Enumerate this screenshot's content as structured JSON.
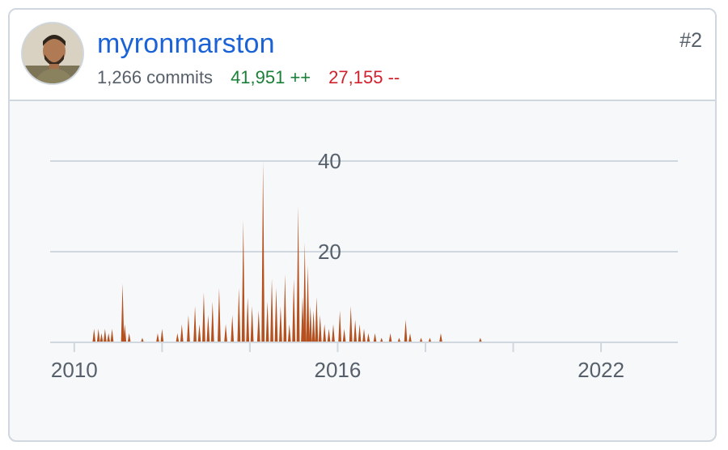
{
  "contributor": {
    "username": "myronmarston",
    "commits_text": "1,266 commits",
    "additions_text": "41,951 ++",
    "deletions_text": "27,155 --",
    "rank": "#2",
    "avatar_icon": "user-avatar-photo"
  },
  "colors": {
    "accent_link": "#1a62d6",
    "additions": "#1a7f37",
    "deletions": "#cf222e",
    "area_fill": "#b5501f"
  },
  "chart_data": {
    "type": "area",
    "title": "",
    "xlabel": "",
    "ylabel": "",
    "x_tick_labels": [
      "2010",
      "2016",
      "2022"
    ],
    "x_ticks": [
      2010,
      2012,
      2014,
      2016,
      2018,
      2020,
      2022
    ],
    "y_ticks": [
      20,
      40
    ],
    "xlim": [
      2009.45,
      2023.75
    ],
    "ylim": [
      0,
      40
    ],
    "grid": true,
    "series": [
      {
        "x": [
          2010.45,
          2010.55,
          2010.62,
          2010.7,
          2010.78,
          2010.86,
          2011.1,
          2011.15,
          2011.25,
          2011.55,
          2011.9,
          2012.0,
          2012.35,
          2012.45,
          2012.6,
          2012.75,
          2012.85,
          2012.95,
          2013.05,
          2013.15,
          2013.3,
          2013.45,
          2013.6,
          2013.75,
          2013.85,
          2013.95,
          2014.05,
          2014.2,
          2014.3,
          2014.4,
          2014.5,
          2014.6,
          2014.7,
          2014.8,
          2014.9,
          2015.0,
          2015.1,
          2015.2,
          2015.25,
          2015.32,
          2015.38,
          2015.45,
          2015.52,
          2015.6,
          2015.7,
          2015.8,
          2015.9,
          2016.05,
          2016.15,
          2016.3,
          2016.4,
          2016.5,
          2016.6,
          2016.7,
          2016.85,
          2017.0,
          2017.2,
          2017.4,
          2017.55,
          2017.65,
          2017.9,
          2018.1,
          2018.35,
          2019.25
        ],
        "y": [
          3,
          3,
          2,
          3,
          2,
          3,
          13,
          4,
          2,
          1,
          2,
          3,
          2,
          4,
          6,
          8,
          4,
          11,
          6,
          9,
          12,
          4,
          6,
          12,
          27,
          10,
          8,
          7,
          40,
          9,
          14,
          12,
          8,
          15,
          4,
          14,
          30,
          10,
          22,
          17,
          8,
          7,
          10,
          6,
          4,
          3,
          4,
          7,
          3,
          8,
          5,
          4,
          3,
          2,
          2,
          1,
          2,
          1,
          5,
          2,
          1,
          1,
          2,
          1
        ]
      }
    ]
  }
}
